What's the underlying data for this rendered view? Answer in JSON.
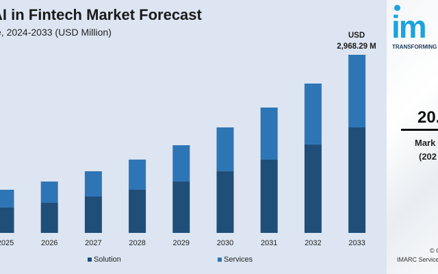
{
  "chart_data": {
    "type": "bar",
    "stacked": true,
    "title": "AI in Fintech Market Forecast",
    "subtitle": "e, 2024-2033 (USD Million)",
    "categories": [
      "2025",
      "2026",
      "2027",
      "2028",
      "2029",
      "2030",
      "2031",
      "2032",
      "2033"
    ],
    "series": [
      {
        "name": "Solution",
        "color": "#1f4e79",
        "values": [
          423,
          502,
          605,
          719,
          856,
          1027,
          1222,
          1473,
          1758
        ]
      },
      {
        "name": "Services",
        "color": "#2e75b6",
        "values": [
          296,
          354,
          422,
          503,
          605,
          731,
          867,
          1016,
          1210
        ]
      }
    ],
    "ylim": [
      0,
      3000
    ],
    "grid": false,
    "legend": "bottom",
    "annotation": {
      "line1": "USD",
      "line2": "2,968.29 M"
    }
  },
  "side_panel": {
    "logo_text": "im",
    "tagline": "TRANSFORMING",
    "cagr_value": "20.",
    "cagr_label_1": "Mark",
    "cagr_label_2": "(202",
    "copyright_1": "© C",
    "copyright_2": "IMARC Services"
  }
}
